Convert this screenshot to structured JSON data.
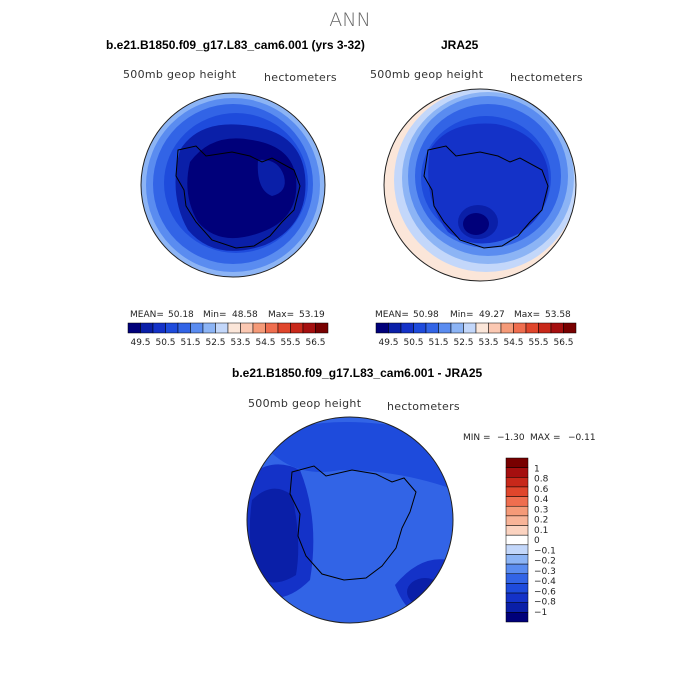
{
  "page": {
    "title": "ANN"
  },
  "panels": [
    {
      "heading": "b.e21.B1850.f09_g17.L83_cam6.001 (yrs 3-32)",
      "variable": "500mb geop height",
      "units": "hectometers",
      "mean_label": "MEAN=",
      "mean": "50.18",
      "min_label": "Min=",
      "min": "48.58",
      "max_label": "Max=",
      "max": "53.19"
    },
    {
      "heading": "JRA25",
      "variable": "500mb geop height",
      "units": "hectometers",
      "mean_label": "MEAN=",
      "mean": "50.98",
      "min_label": "Min=",
      "min": "49.27",
      "max_label": "Max=",
      "max": "53.58"
    }
  ],
  "diff_panel": {
    "heading": "b.e21.B1850.f09_g17.L83_cam6.001 - JRA25",
    "variable": "500mb geop height",
    "units": "hectometers",
    "min_label": "MIN =",
    "min": "−1.30",
    "max_label": "MAX =",
    "max": "−0.11"
  },
  "colorbar_abs": {
    "colors": [
      "#00007a",
      "#0a1fa8",
      "#1432c8",
      "#1e4bdc",
      "#3264e6",
      "#5a8cf0",
      "#8cb4f5",
      "#c3d7fa",
      "#fbe6d9",
      "#fbc8b2",
      "#f59a78",
      "#ef6e4f",
      "#e0462c",
      "#c8281a",
      "#a50f0f",
      "#780000"
    ],
    "ticks": [
      "49.5",
      "50.5",
      "51.5",
      "52.5",
      "53.5",
      "54.5",
      "55.5",
      "56.5"
    ]
  },
  "colorbar_diff": {
    "colors": [
      "#00007a",
      "#0a1fa8",
      "#1432c8",
      "#1e4bdc",
      "#3264e6",
      "#5a8cf0",
      "#8cb4f5",
      "#c3d7fa",
      "#ffffff",
      "#fbd3c0",
      "#f8b498",
      "#f59a78",
      "#ef6e4f",
      "#e0462c",
      "#c8281a",
      "#a50f0f",
      "#780000"
    ],
    "ticks": [
      "1",
      "0.8",
      "0.6",
      "0.4",
      "0.3",
      "0.2",
      "0.1",
      "0",
      "−0.1",
      "−0.2",
      "−0.3",
      "−0.4",
      "−0.6",
      "−0.8",
      "−1"
    ]
  },
  "chart_data": [
    {
      "type": "heatmap",
      "projection": "south polar stereographic",
      "title": "b.e21.B1850.f09_g17.L83_cam6.001 (yrs 3-32)",
      "variable": "500mb geop height",
      "units": "hectometers",
      "contour_levels": [
        49.5,
        50,
        50.5,
        51,
        51.5,
        52,
        52.5,
        53,
        53.5,
        54,
        54.5,
        55,
        55.5,
        56,
        56.5
      ],
      "mean": 50.18,
      "min": 48.58,
      "max": 53.19
    },
    {
      "type": "heatmap",
      "projection": "south polar stereographic",
      "title": "JRA25",
      "variable": "500mb geop height",
      "units": "hectometers",
      "contour_levels": [
        49.5,
        50,
        50.5,
        51,
        51.5,
        52,
        52.5,
        53,
        53.5,
        54,
        54.5,
        55,
        55.5,
        56,
        56.5
      ],
      "mean": 50.98,
      "min": 49.27,
      "max": 53.58
    },
    {
      "type": "heatmap",
      "projection": "south polar stereographic",
      "title": "b.e21.B1850.f09_g17.L83_cam6.001 - JRA25",
      "variable": "500mb geop height",
      "units": "hectometers",
      "contour_levels": [
        -1,
        -0.8,
        -0.6,
        -0.4,
        -0.3,
        -0.2,
        -0.1,
        0,
        0.1,
        0.2,
        0.3,
        0.4,
        0.6,
        0.8,
        1
      ],
      "min": -1.3,
      "max": -0.11
    }
  ]
}
